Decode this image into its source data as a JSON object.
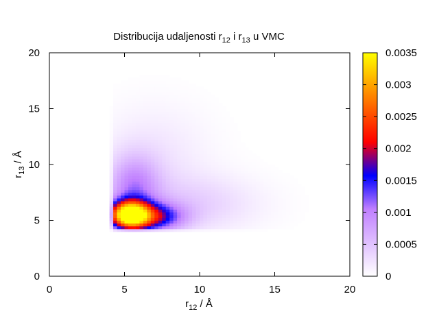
{
  "chart_data": {
    "type": "heatmap",
    "title": {
      "text": "Distribucija udaljenosti r",
      "sub1": "12",
      "mid": " i r",
      "sub2": "13",
      "tail": " u VMC"
    },
    "xlabel": {
      "text": "r",
      "sub": "12",
      "unit": " / Å"
    },
    "ylabel": {
      "text": "r",
      "sub": "13",
      "unit": " / Å"
    },
    "xlim": [
      0,
      20
    ],
    "ylim": [
      0,
      20
    ],
    "x_ticks": [
      0,
      5,
      10,
      15,
      20
    ],
    "y_ticks": [
      0,
      5,
      10,
      15,
      20
    ],
    "x_tick_labels": [
      "0",
      "5",
      "10",
      "15",
      "20"
    ],
    "y_tick_labels": [
      "0",
      "5",
      "10",
      "15",
      "20"
    ],
    "colorbar": {
      "range": [
        0,
        0.0035
      ],
      "ticks": [
        0,
        0.0005,
        0.001,
        0.0015,
        0.002,
        0.0025,
        0.003,
        0.0035
      ],
      "tick_labels": [
        "0",
        "0.0005",
        "0.001",
        "0.0015",
        "0.002",
        "0.0025",
        "0.003",
        "0.0035"
      ],
      "palette": [
        "#ffffff",
        "#c080ff",
        "#0000ff",
        "#ff0000",
        "#ff8000",
        "#ffff00"
      ],
      "palette_stops": [
        0,
        0.3,
        0.45,
        0.6,
        0.8,
        1.0
      ]
    },
    "distribution": {
      "peak_x": 5.3,
      "peak_y": 5.5,
      "peak_value": 0.0035,
      "support_min_x": 4.0,
      "support_min_y": 4.0,
      "grid_step": 0.25,
      "description_values": [
        {
          "x": 5.3,
          "y": 5.5,
          "value": 0.0035
        },
        {
          "x": 7.5,
          "y": 5.3,
          "value": 0.0015
        },
        {
          "x": 5.0,
          "y": 8.0,
          "value": 0.0008
        },
        {
          "x": 10.0,
          "y": 6.0,
          "value": 0.0004
        },
        {
          "x": 6.0,
          "y": 12.0,
          "value": 0.0002
        }
      ]
    },
    "grid": false,
    "legend": "none"
  }
}
